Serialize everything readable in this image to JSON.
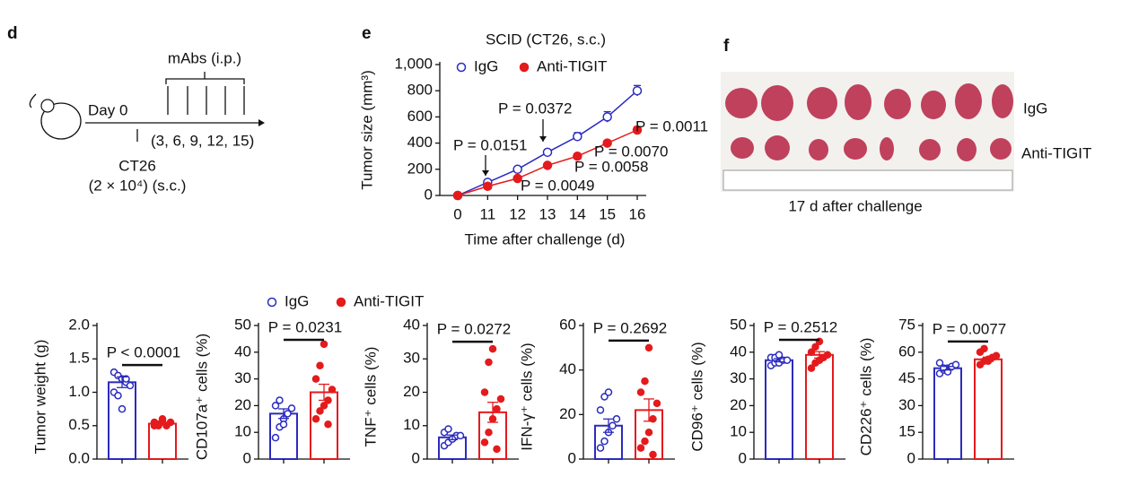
{
  "panel_d": {
    "label": "d",
    "mabs": "mAbs (i.p.)",
    "day0": "Day 0",
    "days": "(3, 6, 9, 12, 15)",
    "cells": "CT26",
    "dose": "(2 × 10⁴) (s.c.)"
  },
  "panel_f": {
    "label": "f",
    "row1": "IgG",
    "row2": "Anti-TIGIT",
    "caption": "17 d after challenge"
  },
  "legend": [
    {
      "name": "IgG",
      "color": "#2b2bbf",
      "marker": "open"
    },
    {
      "name": "Anti-TIGIT",
      "color": "#e41a1c",
      "marker": "filled"
    }
  ],
  "chart_data": [
    {
      "type": "line",
      "panel": "e",
      "title": "SCID (CT26, s.c.)",
      "ylabel": "Tumor size (mm³)",
      "xlabel": "Time after challenge (d)",
      "categories": [
        "0",
        "11",
        "12",
        "13",
        "14",
        "15",
        "16"
      ],
      "series": [
        {
          "name": "IgG",
          "color": "#2b2bbf",
          "marker": "open",
          "values": [
            0,
            100,
            200,
            330,
            450,
            600,
            800
          ],
          "errors": [
            0,
            20,
            20,
            20,
            30,
            40,
            40
          ]
        },
        {
          "name": "Anti-TIGIT",
          "color": "#e41a1c",
          "marker": "filled",
          "values": [
            0,
            70,
            130,
            230,
            300,
            400,
            500
          ],
          "errors": [
            0,
            10,
            10,
            15,
            15,
            20,
            25
          ]
        }
      ],
      "ylim": [
        0,
        1000
      ],
      "yticks": [
        0,
        200,
        400,
        600,
        800,
        {
          "value": 1000,
          "label": "1,000"
        }
      ],
      "annotations": [
        "P = 0.0151",
        "P = 0.0372",
        "P = 0.0011",
        "P = 0.0070",
        "P = 0.0058",
        "P = 0.0049"
      ]
    },
    {
      "type": "bar",
      "ylabel": "Tumor weight (g)",
      "annotation": "P < 0.0001",
      "ylim": [
        0,
        2
      ],
      "yticks": [
        {
          "value": 0,
          "label": "0.0"
        },
        {
          "value": 0.5,
          "label": "0.5"
        },
        {
          "value": 1,
          "label": "1.0"
        },
        {
          "value": 1.5,
          "label": "1.5"
        },
        {
          "value": 2,
          "label": "2.0"
        }
      ],
      "groups": [
        {
          "color": "#2b2bbf",
          "marker": "open",
          "value": 1.15,
          "error": 0.08,
          "points": [
            1.3,
            1.25,
            1.2,
            1.15,
            1.1,
            1.0,
            0.95,
            0.75,
            1.2
          ]
        },
        {
          "color": "#e41a1c",
          "marker": "filled",
          "value": 0.53,
          "error": 0.02,
          "points": [
            0.55,
            0.5,
            0.6,
            0.5,
            0.55,
            0.5,
            0.52,
            0.58
          ]
        }
      ]
    },
    {
      "type": "bar",
      "ylabel": "CD107a⁺ cells (%)",
      "annotation": "P = 0.0231",
      "ylim": [
        0,
        50
      ],
      "yticks": [
        0,
        10,
        20,
        30,
        40,
        50
      ],
      "groups": [
        {
          "color": "#2b2bbf",
          "marker": "open",
          "value": 17,
          "error": 1.8,
          "points": [
            8,
            12,
            15,
            17,
            19,
            20,
            22,
            13
          ]
        },
        {
          "color": "#e41a1c",
          "marker": "filled",
          "value": 25,
          "error": 3,
          "points": [
            15,
            18,
            20,
            22,
            26,
            30,
            35,
            43,
            13
          ]
        }
      ]
    },
    {
      "type": "bar",
      "ylabel": "TNF⁺ cells (%)",
      "annotation": "P = 0.0272",
      "ylim": [
        0,
        40
      ],
      "yticks": [
        0,
        10,
        20,
        30,
        40
      ],
      "groups": [
        {
          "color": "#2b2bbf",
          "marker": "open",
          "value": 6.5,
          "error": 0.7,
          "points": [
            4,
            5,
            6,
            7,
            7,
            8,
            9,
            6
          ]
        },
        {
          "color": "#e41a1c",
          "marker": "filled",
          "value": 14,
          "error": 3,
          "points": [
            5,
            8,
            12,
            15,
            18,
            20,
            29,
            33,
            3
          ]
        }
      ]
    },
    {
      "type": "bar",
      "ylabel": "IFN-γ⁺ cells (%)",
      "annotation": "P = 0.2692",
      "ylim": [
        0,
        60
      ],
      "yticks": [
        0,
        20,
        40,
        60
      ],
      "groups": [
        {
          "color": "#2b2bbf",
          "marker": "open",
          "value": 15,
          "error": 3,
          "points": [
            5,
            8,
            12,
            15,
            18,
            22,
            28,
            30
          ]
        },
        {
          "color": "#e41a1c",
          "marker": "filled",
          "value": 22,
          "error": 5,
          "points": [
            5,
            8,
            12,
            18,
            25,
            30,
            35,
            50,
            2
          ]
        }
      ]
    },
    {
      "type": "bar",
      "ylabel": "CD96⁺ cells (%)",
      "annotation": "P = 0.2512",
      "ylim": [
        0,
        50
      ],
      "yticks": [
        0,
        10,
        20,
        30,
        40,
        50
      ],
      "groups": [
        {
          "color": "#2b2bbf",
          "marker": "open",
          "value": 37,
          "error": 0.6,
          "points": [
            35,
            36,
            36,
            37,
            37,
            38,
            38,
            39
          ]
        },
        {
          "color": "#e41a1c",
          "marker": "filled",
          "value": 39,
          "error": 1.2,
          "points": [
            34,
            36,
            37,
            38,
            39,
            40,
            42,
            44
          ]
        }
      ]
    },
    {
      "type": "bar",
      "ylabel": "CD226⁺ cells (%)",
      "annotation": "P = 0.0077",
      "ylim": [
        0,
        75
      ],
      "yticks": [
        0,
        15,
        30,
        45,
        60,
        75
      ],
      "groups": [
        {
          "color": "#2b2bbf",
          "marker": "open",
          "value": 51,
          "error": 1,
          "points": [
            48,
            50,
            51,
            52,
            53,
            54,
            51,
            49
          ]
        },
        {
          "color": "#e41a1c",
          "marker": "filled",
          "value": 56,
          "error": 1.2,
          "points": [
            53,
            55,
            56,
            57,
            58,
            60,
            62,
            55
          ]
        }
      ]
    }
  ]
}
